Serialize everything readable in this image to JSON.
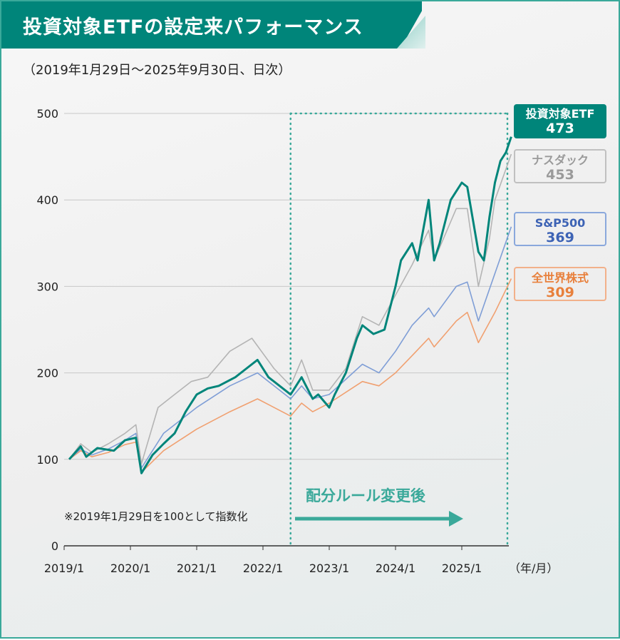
{
  "title": "投資対象ETFの設定来パフォーマンス",
  "subtitle": "（2019年1月29日〜2025年9月30日、日次）",
  "chart_data": {
    "type": "line",
    "xlabel": "（年/月）",
    "ylim": [
      0,
      500
    ],
    "yticks": [
      "0",
      "100",
      "200",
      "300",
      "400",
      "500"
    ],
    "xtick_labels": [
      "2019/1",
      "2020/1",
      "2021/1",
      "2022/1",
      "2023/1",
      "2024/1",
      "2025/1"
    ],
    "grid": true,
    "note": "※2019年1月29日を100として指数化",
    "annotation": "配分ルール変更後",
    "rule_change_date": "2022-06",
    "legend_placement": "right",
    "series": [
      {
        "name": "投資対象ETF",
        "final_label": "473",
        "color": "#00857a",
        "points": [
          [
            "2019-01-29",
            100
          ],
          [
            "2019-04",
            115
          ],
          [
            "2019-05",
            103
          ],
          [
            "2019-07",
            113
          ],
          [
            "2019-10",
            110
          ],
          [
            "2019-12",
            122
          ],
          [
            "2020-02",
            125
          ],
          [
            "2020-03",
            84
          ],
          [
            "2020-05",
            105
          ],
          [
            "2020-07",
            118
          ],
          [
            "2020-09",
            130
          ],
          [
            "2020-11",
            155
          ],
          [
            "2021-01",
            175
          ],
          [
            "2021-03",
            182
          ],
          [
            "2021-05",
            185
          ],
          [
            "2021-08",
            195
          ],
          [
            "2021-10",
            205
          ],
          [
            "2021-12",
            215
          ],
          [
            "2022-02",
            195
          ],
          [
            "2022-04",
            185
          ],
          [
            "2022-06",
            175
          ],
          [
            "2022-08",
            195
          ],
          [
            "2022-10",
            170
          ],
          [
            "2022-11",
            175
          ],
          [
            "2023-01",
            160
          ],
          [
            "2023-02",
            175
          ],
          [
            "2023-04",
            200
          ],
          [
            "2023-06",
            240
          ],
          [
            "2023-07",
            255
          ],
          [
            "2023-09",
            245
          ],
          [
            "2023-11",
            250
          ],
          [
            "2024-01",
            300
          ],
          [
            "2024-02",
            330
          ],
          [
            "2024-04",
            350
          ],
          [
            "2024-05",
            330
          ],
          [
            "2024-07",
            400
          ],
          [
            "2024-08",
            330
          ],
          [
            "2024-09",
            350
          ],
          [
            "2024-11",
            400
          ],
          [
            "2025-01",
            420
          ],
          [
            "2025-02",
            415
          ],
          [
            "2025-04",
            340
          ],
          [
            "2025-05",
            330
          ],
          [
            "2025-06",
            380
          ],
          [
            "2025-07",
            420
          ],
          [
            "2025-08",
            445
          ],
          [
            "2025-09",
            455
          ],
          [
            "2025-09-30",
            473
          ]
        ]
      },
      {
        "name": "ナスダック",
        "final_label": "453",
        "color": "#b4b4b4",
        "points": [
          [
            "2019-01-29",
            100
          ],
          [
            "2019-04",
            118
          ],
          [
            "2019-06",
            108
          ],
          [
            "2019-09",
            118
          ],
          [
            "2019-12",
            130
          ],
          [
            "2020-02",
            140
          ],
          [
            "2020-03",
            95
          ],
          [
            "2020-06",
            160
          ],
          [
            "2020-09",
            175
          ],
          [
            "2020-12",
            190
          ],
          [
            "2021-03",
            195
          ],
          [
            "2021-07",
            225
          ],
          [
            "2021-11",
            240
          ],
          [
            "2022-03",
            205
          ],
          [
            "2022-06",
            185
          ],
          [
            "2022-08",
            215
          ],
          [
            "2022-10",
            180
          ],
          [
            "2023-01",
            180
          ],
          [
            "2023-04",
            205
          ],
          [
            "2023-07",
            265
          ],
          [
            "2023-10",
            255
          ],
          [
            "2024-01",
            290
          ],
          [
            "2024-04",
            325
          ],
          [
            "2024-07",
            365
          ],
          [
            "2024-08",
            330
          ],
          [
            "2024-12",
            390
          ],
          [
            "2025-02",
            390
          ],
          [
            "2025-04",
            300
          ],
          [
            "2025-06",
            355
          ],
          [
            "2025-07",
            400
          ],
          [
            "2025-09-30",
            453
          ]
        ]
      },
      {
        "name": "S&P500",
        "final_label": "369",
        "color": "#7f9ed6",
        "points": [
          [
            "2019-01-29",
            100
          ],
          [
            "2019-04",
            112
          ],
          [
            "2019-06",
            105
          ],
          [
            "2019-09",
            112
          ],
          [
            "2019-12",
            122
          ],
          [
            "2020-02",
            130
          ],
          [
            "2020-03",
            90
          ],
          [
            "2020-07",
            130
          ],
          [
            "2021-01",
            160
          ],
          [
            "2021-07",
            185
          ],
          [
            "2021-12",
            200
          ],
          [
            "2022-06",
            170
          ],
          [
            "2022-08",
            185
          ],
          [
            "2022-10",
            170
          ],
          [
            "2023-01",
            175
          ],
          [
            "2023-07",
            210
          ],
          [
            "2023-10",
            200
          ],
          [
            "2024-01",
            225
          ],
          [
            "2024-04",
            255
          ],
          [
            "2024-07",
            275
          ],
          [
            "2024-08",
            265
          ],
          [
            "2024-12",
            300
          ],
          [
            "2025-02",
            305
          ],
          [
            "2025-04",
            260
          ],
          [
            "2025-07",
            315
          ],
          [
            "2025-09-30",
            369
          ]
        ]
      },
      {
        "name": "全世界株式",
        "final_label": "309",
        "color": "#f0a070",
        "points": [
          [
            "2019-01-29",
            100
          ],
          [
            "2019-04",
            110
          ],
          [
            "2019-06",
            103
          ],
          [
            "2019-09",
            108
          ],
          [
            "2019-12",
            117
          ],
          [
            "2020-02",
            120
          ],
          [
            "2020-03",
            85
          ],
          [
            "2020-07",
            110
          ],
          [
            "2021-01",
            135
          ],
          [
            "2021-07",
            155
          ],
          [
            "2021-12",
            170
          ],
          [
            "2022-06",
            150
          ],
          [
            "2022-08",
            165
          ],
          [
            "2022-10",
            155
          ],
          [
            "2023-01",
            165
          ],
          [
            "2023-07",
            190
          ],
          [
            "2023-10",
            185
          ],
          [
            "2024-01",
            200
          ],
          [
            "2024-04",
            220
          ],
          [
            "2024-07",
            240
          ],
          [
            "2024-08",
            230
          ],
          [
            "2024-12",
            260
          ],
          [
            "2025-02",
            270
          ],
          [
            "2025-04",
            235
          ],
          [
            "2025-07",
            270
          ],
          [
            "2025-09-30",
            309
          ]
        ]
      }
    ]
  }
}
